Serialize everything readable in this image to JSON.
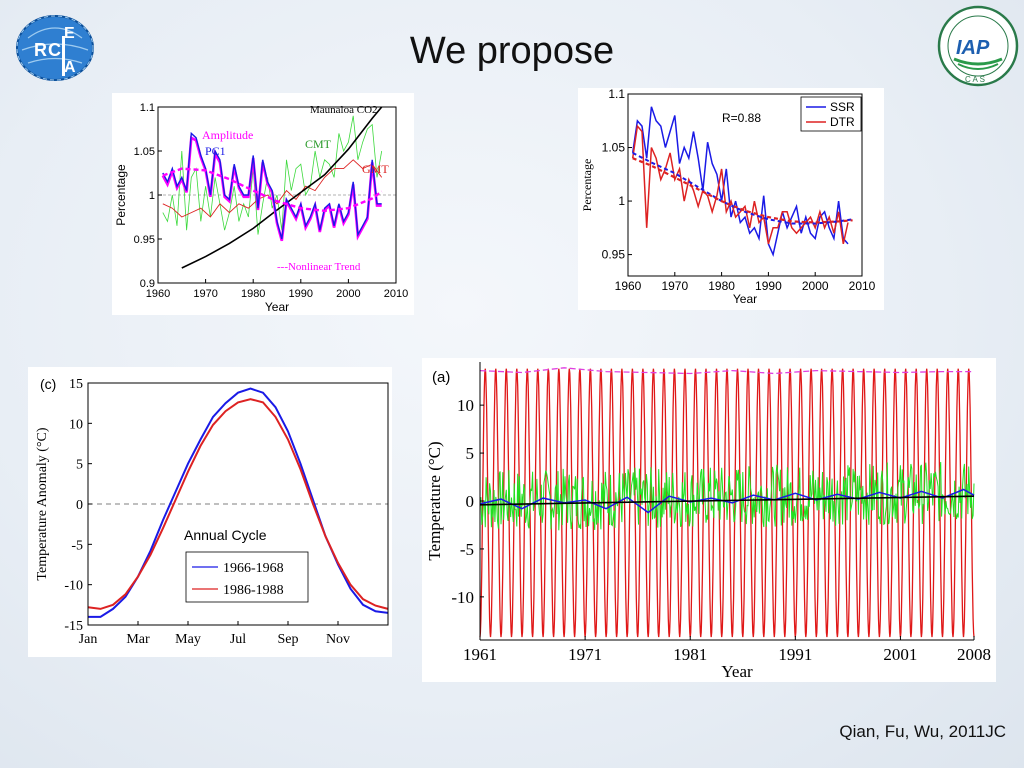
{
  "slide": {
    "title": "We propose",
    "citation": "Qian, Fu, Wu, 2011JC",
    "logo_left": {
      "name": "rcea-logo",
      "letters": [
        "R",
        "C",
        "E",
        "A"
      ]
    },
    "logo_right": {
      "name": "iap-cas-logo",
      "text": "IAP",
      "sub": "C A S"
    }
  },
  "chart_data": [
    {
      "id": "chart1",
      "type": "line",
      "xlabel": "Year",
      "ylabel": "Percentage",
      "xlim": [
        1960,
        2010
      ],
      "ylim": [
        0.9,
        1.1
      ],
      "xticks": [
        1960,
        1970,
        1980,
        1990,
        2000,
        2010
      ],
      "yticks": [
        0.9,
        0.95,
        1,
        1.05,
        1.1
      ],
      "ytick_labels": [
        "0.9",
        "0.95",
        "1",
        "1.05",
        "1.1"
      ],
      "labels": {
        "maunaloa": "Maunaloa CO2",
        "amplitude": "Amplitude",
        "pc1": "PC1",
        "cmt": "CMT",
        "gmt": "GMT",
        "trend": "---Nonlinear Trend"
      },
      "colors": {
        "maunaloa": "#000000",
        "amplitude": "#ff00ff",
        "pc1": "#1a1ae6",
        "cmt": "#3cd93c",
        "gmt": "#dd2222",
        "trend": "#ff00ff"
      },
      "series": [
        {
          "key": "maunaloa",
          "x": [
            1965,
            1970,
            1975,
            1980,
            1985,
            1990,
            1995,
            2000,
            2005,
            2007
          ],
          "values": [
            0.917,
            0.93,
            0.945,
            0.962,
            0.983,
            1.003,
            1.023,
            1.052,
            1.087,
            1.1
          ]
        },
        {
          "key": "pc1",
          "x": [
            1961,
            1962,
            1963,
            1964,
            1965,
            1966,
            1967,
            1968,
            1969,
            1970,
            1971,
            1972,
            1973,
            1974,
            1975,
            1976,
            1977,
            1978,
            1979,
            1980,
            1981,
            1982,
            1983,
            1984,
            1985,
            1986,
            1987,
            1988,
            1989,
            1990,
            1991,
            1992,
            1993,
            1994,
            1995,
            1996,
            1997,
            1998,
            1999,
            2000,
            2001,
            2002,
            2003,
            2004,
            2005,
            2006,
            2007
          ],
          "values": [
            1.025,
            1.015,
            1.03,
            1.01,
            1.02,
            1.005,
            1.07,
            1.065,
            1.045,
            1.03,
            1.0,
            1.05,
            1.04,
            1.0,
            0.995,
            1.035,
            1.01,
            1.0,
            1.0,
            1.045,
            0.985,
            1.04,
            1.015,
            1.005,
            0.97,
            0.95,
            0.995,
            0.985,
            0.975,
            0.99,
            0.965,
            0.975,
            0.99,
            0.96,
            0.985,
            0.99,
            0.965,
            0.99,
            0.97,
            0.98,
            1.015,
            0.955,
            0.965,
            0.975,
            1.04,
            0.99,
            0.99
          ]
        },
        {
          "key": "amplitude",
          "x": [
            1961,
            1962,
            1963,
            1964,
            1965,
            1966,
            1967,
            1968,
            1969,
            1970,
            1971,
            1972,
            1973,
            1974,
            1975,
            1976,
            1977,
            1978,
            1979,
            1980,
            1981,
            1982,
            1983,
            1984,
            1985,
            1986,
            1987,
            1988,
            1989,
            1990,
            1991,
            1992,
            1993,
            1994,
            1995,
            1996,
            1997,
            1998,
            1999,
            2000,
            2001,
            2002,
            2003,
            2004,
            2005,
            2006,
            2007
          ],
          "values": [
            1.022,
            1.012,
            1.027,
            1.008,
            1.018,
            1.003,
            1.065,
            1.062,
            1.043,
            1.028,
            0.998,
            1.047,
            1.037,
            0.998,
            0.993,
            1.032,
            1.008,
            0.998,
            0.998,
            1.042,
            0.983,
            1.037,
            1.013,
            1.003,
            0.968,
            0.948,
            0.993,
            0.983,
            0.973,
            0.988,
            0.963,
            0.973,
            0.988,
            0.958,
            0.983,
            0.988,
            0.963,
            0.988,
            0.968,
            0.978,
            1.012,
            0.953,
            0.963,
            0.973,
            1.037,
            0.988,
            0.988
          ]
        },
        {
          "key": "cmt",
          "x": [
            1961,
            1962,
            1963,
            1964,
            1965,
            1966,
            1967,
            1968,
            1969,
            1970,
            1971,
            1972,
            1973,
            1974,
            1975,
            1976,
            1977,
            1978,
            1979,
            1980,
            1981,
            1982,
            1983,
            1984,
            1985,
            1986,
            1987,
            1988,
            1989,
            1990,
            1991,
            1992,
            1993,
            1994,
            1995,
            1996,
            1997,
            1998,
            1999,
            2000,
            2001,
            2002,
            2003,
            2004,
            2005,
            2006,
            2007
          ],
          "values": [
            0.98,
            0.97,
            1.0,
            0.965,
            1.05,
            0.96,
            1.02,
            1.03,
            0.97,
            1.01,
            0.975,
            1.02,
            0.99,
            0.96,
            0.98,
            1.01,
            0.97,
            0.99,
            0.975,
            1.03,
            0.955,
            0.99,
            1.02,
            0.985,
            1.0,
            0.96,
            1.04,
            1.005,
            1.03,
            1.035,
            1.0,
            1.01,
            1.05,
            1.02,
            1.04,
            1.035,
            1.02,
            1.07,
            1.05,
            1.06,
            1.09,
            1.04,
            1.06,
            1.075,
            1.08,
            1.02,
            1.05
          ]
        },
        {
          "key": "gmt",
          "x": [
            1961,
            1963,
            1965,
            1967,
            1969,
            1971,
            1973,
            1975,
            1977,
            1979,
            1981,
            1983,
            1985,
            1987,
            1989,
            1991,
            1993,
            1995,
            1997,
            1999,
            2001,
            2003,
            2005,
            2007
          ],
          "values": [
            0.99,
            0.985,
            0.975,
            0.98,
            0.985,
            0.975,
            0.99,
            0.98,
            0.99,
            0.985,
            0.995,
            1.0,
            0.99,
            1.005,
            0.995,
            1.01,
            1.005,
            1.02,
            1.03,
            1.03,
            1.04,
            1.03,
            1.035,
            1.02
          ]
        },
        {
          "key": "trend",
          "x": [
            1961,
            1965,
            1970,
            1975,
            1980,
            1985,
            1990,
            1995,
            2000,
            2005,
            2007
          ],
          "values": [
            1.022,
            1.03,
            1.028,
            1.018,
            1.005,
            0.993,
            0.985,
            0.982,
            0.985,
            0.996,
            1.004
          ]
        }
      ]
    },
    {
      "id": "chart2",
      "type": "line",
      "xlabel": "Year",
      "ylabel": "Percentage",
      "xlim": [
        1960,
        2010
      ],
      "ylim": [
        0.93,
        1.1
      ],
      "xticks": [
        1960,
        1970,
        1980,
        1990,
        2000,
        2010
      ],
      "yticks": [
        0.95,
        1,
        1.05,
        1.1
      ],
      "ytick_labels": [
        "0.95",
        "1",
        "1.05",
        "1.1"
      ],
      "annotation": "R=0.88",
      "legend": {
        "position": "top-right",
        "entries": [
          "SSR",
          "DTR"
        ]
      },
      "colors": {
        "SSR": "#1a1ae6",
        "DTR": "#dd2222"
      },
      "series": [
        {
          "name": "SSR",
          "x": [
            1961,
            1962,
            1963,
            1964,
            1965,
            1966,
            1967,
            1968,
            1969,
            1970,
            1971,
            1972,
            1973,
            1974,
            1975,
            1976,
            1977,
            1978,
            1979,
            1980,
            1981,
            1982,
            1983,
            1984,
            1985,
            1986,
            1987,
            1988,
            1989,
            1990,
            1991,
            1992,
            1993,
            1994,
            1995,
            1996,
            1997,
            1998,
            1999,
            2000,
            2001,
            2002,
            2003,
            2004,
            2005,
            2006,
            2007
          ],
          "values": [
            1.045,
            1.075,
            1.07,
            1.04,
            1.088,
            1.075,
            1.07,
            1.05,
            1.065,
            1.08,
            1.035,
            1.05,
            1.04,
            1.065,
            1.04,
            1.01,
            1.055,
            1.035,
            1.025,
            1.0,
            1.03,
            0.985,
            1.0,
            0.98,
            0.985,
            0.97,
            0.975,
            0.965,
            1.005,
            0.96,
            0.95,
            0.97,
            0.99,
            0.975,
            0.985,
            0.995,
            0.97,
            0.985,
            0.97,
            0.965,
            0.985,
            0.99,
            0.975,
            0.965,
            1.0,
            0.965,
            0.96
          ]
        },
        {
          "name": "DTR",
          "x": [
            1961,
            1962,
            1963,
            1964,
            1965,
            1966,
            1967,
            1968,
            1969,
            1970,
            1971,
            1972,
            1973,
            1974,
            1975,
            1976,
            1977,
            1978,
            1979,
            1980,
            1981,
            1982,
            1983,
            1984,
            1985,
            1986,
            1987,
            1988,
            1989,
            1990,
            1991,
            1992,
            1993,
            1994,
            1995,
            1996,
            1997,
            1998,
            1999,
            2000,
            2001,
            2002,
            2003,
            2004,
            2005,
            2006,
            2007
          ],
          "values": [
            1.04,
            1.07,
            1.065,
            0.975,
            1.05,
            1.04,
            1.02,
            1.03,
            1.045,
            1.02,
            1.03,
            1.0,
            1.02,
            1.01,
            0.995,
            1.01,
            1.005,
            0.99,
            1.005,
            1.03,
            0.99,
            1.0,
            0.985,
            0.99,
            0.995,
            0.975,
            1.0,
            0.98,
            0.985,
            0.96,
            0.975,
            0.975,
            0.99,
            0.99,
            0.975,
            0.97,
            0.975,
            0.98,
            0.985,
            0.975,
            0.99,
            0.975,
            0.985,
            0.97,
            0.99,
            0.96,
            0.98
          ]
        },
        {
          "name": "SSR trend",
          "x": [
            1961,
            1965,
            1970,
            1975,
            1980,
            1985,
            1990,
            1995,
            2000,
            2005,
            2008
          ],
          "values": [
            1.045,
            1.036,
            1.026,
            1.013,
            1.0,
            0.99,
            0.983,
            0.979,
            0.979,
            0.981,
            0.983
          ]
        },
        {
          "name": "DTR trend",
          "x": [
            1961,
            1965,
            1970,
            1975,
            1980,
            1985,
            1990,
            1995,
            2000,
            2005,
            2008
          ],
          "values": [
            1.04,
            1.033,
            1.022,
            1.011,
            1.0,
            0.991,
            0.985,
            0.981,
            0.98,
            0.981,
            0.982
          ]
        }
      ]
    },
    {
      "id": "chart3",
      "type": "line",
      "panel_label": "(c)",
      "ylabel": "Temperature Anomaly (°C)",
      "ylim": [
        -15,
        15
      ],
      "yticks": [
        15,
        10,
        5,
        0,
        -5,
        -10,
        -15
      ],
      "ytick_labels": [
        "15",
        "10",
        "5",
        "0",
        "-5",
        "-10",
        "-15"
      ],
      "xticks": [
        "Jan",
        "Mar",
        "May",
        "Jul",
        "Sep",
        "Nov"
      ],
      "annotation": "Annual Cycle",
      "legend": {
        "position": "bottom-center",
        "entries": [
          "1966-1968",
          "1986-1988"
        ]
      },
      "colors": {
        "1966-1968": "#1a1ae6",
        "1986-1988": "#dd2222"
      },
      "series": [
        {
          "name": "1966-1968",
          "x": [
            0,
            0.5,
            1,
            1.5,
            2,
            2.5,
            3,
            3.5,
            4,
            4.5,
            5,
            5.5,
            6,
            6.5,
            7,
            7.5,
            8,
            8.5,
            9,
            9.5,
            10,
            10.5,
            11,
            11.5,
            12
          ],
          "values": [
            -14.0,
            -14.0,
            -13.0,
            -11.5,
            -9.0,
            -5.8,
            -2.0,
            1.5,
            5.0,
            8.0,
            10.8,
            12.5,
            13.8,
            14.3,
            13.8,
            12.0,
            9.0,
            5.0,
            0.5,
            -4.0,
            -7.5,
            -10.5,
            -12.5,
            -13.3,
            -13.5
          ]
        },
        {
          "name": "1986-1988",
          "x": [
            0,
            0.5,
            1,
            1.5,
            2,
            2.5,
            3,
            3.5,
            4,
            4.5,
            5,
            5.5,
            6,
            6.5,
            7,
            7.5,
            8,
            8.5,
            9,
            9.5,
            10,
            10.5,
            11,
            11.5,
            12
          ],
          "values": [
            -12.8,
            -13.0,
            -12.5,
            -11.2,
            -9.0,
            -6.3,
            -3.0,
            0.5,
            4.0,
            7.2,
            9.8,
            11.5,
            12.6,
            13.0,
            12.6,
            10.8,
            8.0,
            4.3,
            0.0,
            -4.0,
            -7.3,
            -10.0,
            -11.8,
            -12.6,
            -13.0
          ]
        }
      ]
    },
    {
      "id": "chart4",
      "type": "line",
      "panel_label": "(a)",
      "xlabel": "Year",
      "ylabel": "Temperature (°C)",
      "xlim": [
        1961,
        2008
      ],
      "ylim": [
        -14.5,
        14.5
      ],
      "xticks": [
        "1961",
        "1971",
        "1981",
        "1991",
        "2001",
        "2008"
      ],
      "yticks": [
        10,
        5,
        0,
        -5,
        -10
      ],
      "ytick_labels": [
        "10",
        "5",
        "0",
        "-5",
        "-10"
      ],
      "colors": {
        "seasonal": "#e01818",
        "envelope": "#e040e0",
        "anomaly": "#20e020",
        "smoothed": "#1a1ae6",
        "trend": "#000000"
      },
      "series": [
        {
          "name": "seasonal",
          "description_of_values": "annual cycle amplitude",
          "amplitude_upper": 13.8,
          "amplitude_lower": -14.2
        },
        {
          "name": "envelope",
          "x": [
            1961,
            1965,
            1969,
            1973,
            1977,
            1981,
            1985,
            1989,
            1993,
            1997,
            2001,
            2005,
            2008
          ],
          "values": [
            13.6,
            13.4,
            13.9,
            13.5,
            13.4,
            13.3,
            13.6,
            13.3,
            13.6,
            13.5,
            13.4,
            13.5,
            13.5
          ]
        },
        {
          "name": "smoothed",
          "x": [
            1961,
            1963,
            1965,
            1967,
            1969,
            1971,
            1973,
            1975,
            1977,
            1979,
            1981,
            1983,
            1985,
            1987,
            1989,
            1991,
            1993,
            1995,
            1997,
            1999,
            2001,
            2003,
            2005,
            2007,
            2008
          ],
          "values": [
            -0.3,
            0.2,
            -0.8,
            0.3,
            -0.2,
            0.1,
            -0.8,
            0.4,
            -1.2,
            0.5,
            -0.1,
            0.3,
            -0.2,
            0.6,
            0.1,
            0.8,
            0.1,
            0.7,
            0.2,
            0.9,
            0.3,
            1.0,
            0.3,
            1.2,
            0.6
          ]
        },
        {
          "name": "trend",
          "x": [
            1961,
            2008
          ],
          "values": [
            -0.4,
            0.5
          ]
        }
      ]
    }
  ]
}
